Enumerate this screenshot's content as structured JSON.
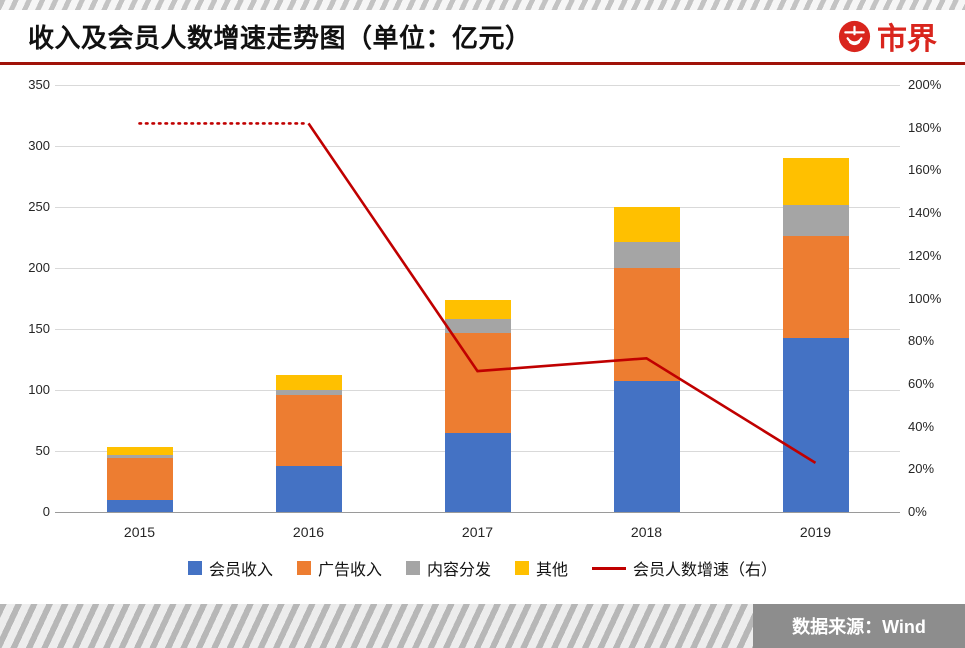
{
  "header": {
    "title": "收入及会员人数增速走势图（单位：亿元）",
    "logo_text": "市界"
  },
  "footer": {
    "source_label": "数据来源：Wind"
  },
  "colors": {
    "member": "#4472C4",
    "ad": "#ED7D31",
    "content": "#A5A5A5",
    "other": "#FFC000",
    "line": "#C00000",
    "logo_red": "#D9251D",
    "gridline": "#D9D9D9"
  },
  "chart_data": {
    "type": "bar",
    "stacked": true,
    "title": "收入及会员人数增速走势图（单位：亿元）",
    "categories": [
      "2015",
      "2016",
      "2017",
      "2018",
      "2019"
    ],
    "series": [
      {
        "name": "会员收入",
        "color_key": "member",
        "values": [
          10,
          38,
          65,
          107,
          143
        ]
      },
      {
        "name": "广告收入",
        "color_key": "ad",
        "values": [
          34,
          58,
          82,
          93,
          83
        ]
      },
      {
        "name": "内容分发",
        "color_key": "content",
        "values": [
          3,
          4,
          11,
          21,
          26
        ]
      },
      {
        "name": "其他",
        "color_key": "other",
        "values": [
          6,
          12,
          16,
          29,
          38
        ]
      }
    ],
    "line_series": {
      "name": "会员人数增速（右）",
      "axis": "right",
      "values": [
        182,
        182,
        66,
        72,
        23
      ],
      "dotted_until_index": 1
    },
    "left_axis": {
      "min": 0,
      "max": 350,
      "step": 50,
      "labels": [
        "350",
        "300",
        "250",
        "200",
        "150",
        "100",
        "50",
        "0"
      ]
    },
    "right_axis": {
      "min": 0,
      "max": 200,
      "step": 20,
      "labels": [
        "200%",
        "180%",
        "160%",
        "140%",
        "120%",
        "100%",
        "80%",
        "60%",
        "40%",
        "20%",
        "0%"
      ]
    },
    "legend": [
      "会员收入",
      "广告收入",
      "内容分发",
      "其他",
      "会员人数增速（右）"
    ],
    "legend_position": "bottom",
    "grid": true
  }
}
